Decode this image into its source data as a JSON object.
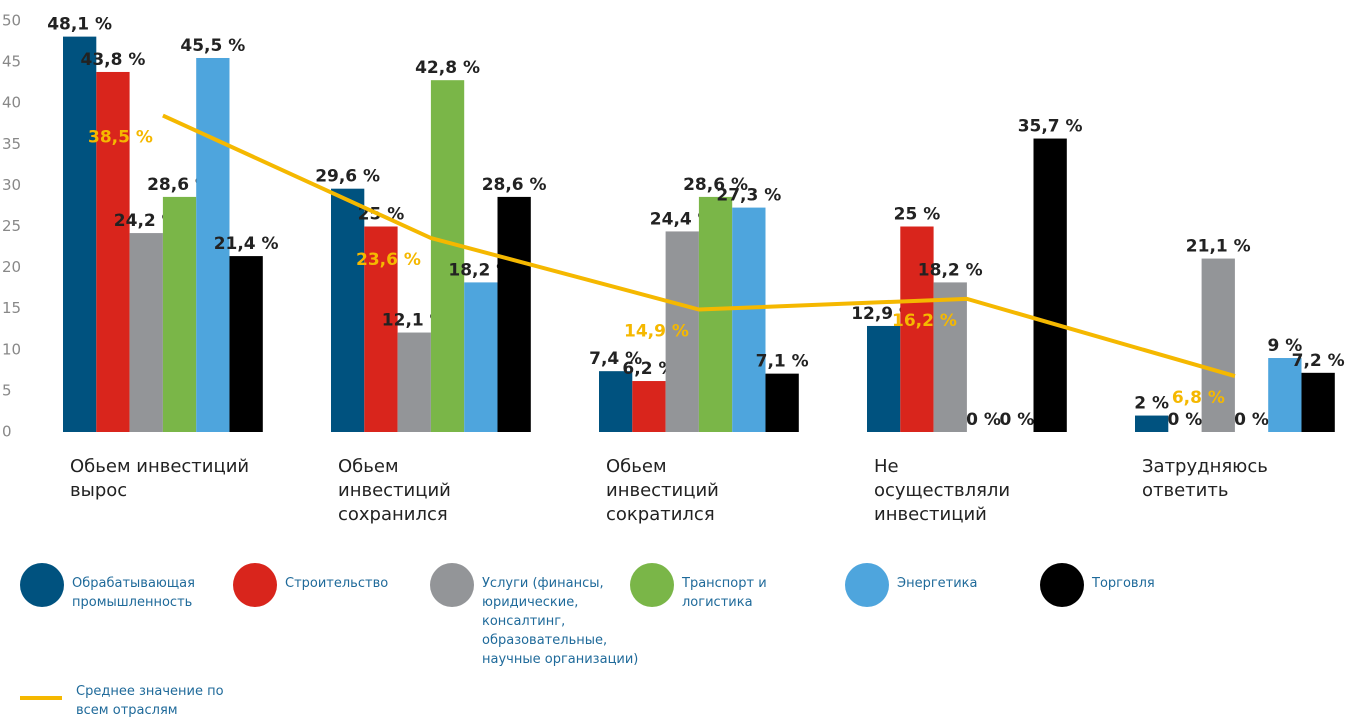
{
  "chart_data": {
    "type": "bar",
    "categories": [
      "Обьем инвестиций вырос",
      "Обьем инвестиций сохранился",
      "Обьем инвестиций сократился",
      "Не осуществляли инвестиций",
      "Затрудняюсь ответить"
    ],
    "series": [
      {
        "name": "Обрабатывающая промышленность",
        "color": "#00527f",
        "values": [
          48.1,
          29.6,
          7.4,
          12.9,
          2
        ],
        "value_labels": [
          "48,1 %",
          "29,6 %",
          "7,4 %",
          "12,9 %",
          "2 %"
        ]
      },
      {
        "name": "Строительство",
        "color": "#d9251c",
        "values": [
          43.8,
          25,
          6.2,
          25,
          0
        ],
        "value_labels": [
          "43,8 %",
          "25 %",
          "6,2 %",
          "25 %",
          "0 %"
        ]
      },
      {
        "name": "Услуги (финансы, юридические, консалтинг, образовательные, научные организации)",
        "color": "#939598",
        "values": [
          24.2,
          12.1,
          24.4,
          18.2,
          21.1
        ],
        "value_labels": [
          "24,2 %",
          "12,1 %",
          "24,4 %",
          "18,2 %",
          "21,1 %"
        ]
      },
      {
        "name": "Транспорт и логистика",
        "color": "#7ab648",
        "values": [
          28.6,
          42.8,
          28.6,
          0,
          0
        ],
        "value_labels": [
          "28,6 %",
          "42,8 %",
          "28,6 %",
          "0 %",
          "0 %"
        ]
      },
      {
        "name": "Энергетика",
        "color": "#4ea5dd",
        "values": [
          45.5,
          18.2,
          27.3,
          0,
          9
        ],
        "value_labels": [
          "45,5 %",
          "18,2 %",
          "27,3 %",
          "0 %",
          "9 %"
        ]
      },
      {
        "name": "Торговля",
        "color": "#000000",
        "values": [
          21.4,
          28.6,
          7.1,
          35.7,
          7.2
        ],
        "value_labels": [
          "21,4 %",
          "28,6 %",
          "7,1 %",
          "35,7 %",
          "7,2 %"
        ]
      }
    ],
    "line": {
      "name": "Среднее значение по всем отраслям",
      "color": "#f5b800",
      "values": [
        38.5,
        23.6,
        14.9,
        16.2,
        6.8
      ],
      "value_labels": [
        "38,5 %",
        "23,6 %",
        "14,9 %",
        "16,2 %",
        "6,8 %"
      ]
    },
    "ylim": [
      0,
      50
    ],
    "yticks": [
      0,
      5,
      10,
      15,
      20,
      25,
      30,
      35,
      40,
      45,
      50
    ],
    "grid": false,
    "legend": "bottom"
  }
}
